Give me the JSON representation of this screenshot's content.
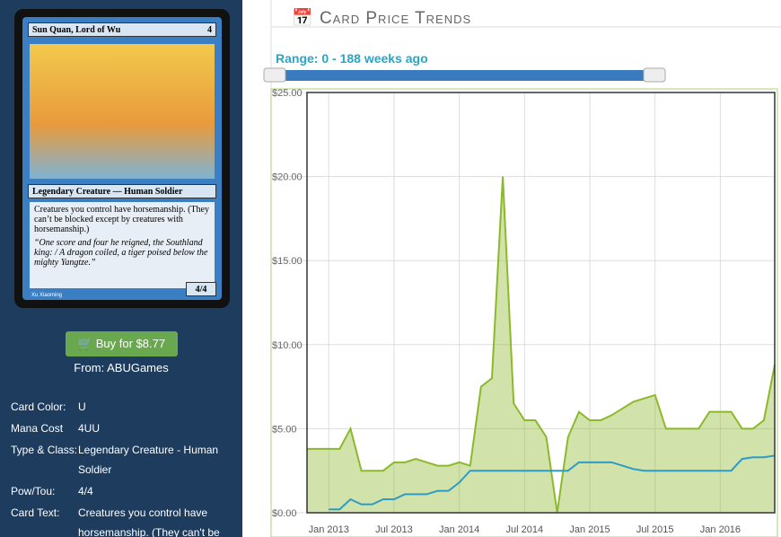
{
  "card": {
    "name": "Sun Quan, Lord of Wu",
    "mana": "4",
    "type_line": "Legendary Creature — Human Soldier",
    "rules": "Creatures you control have horsemanship. (They can’t be blocked except by creatures with horsemanship.)",
    "flavor": "“One score and four he reigned, the Southland king: / A dragon coiled, a tiger poised below the mighty Yangtze.”",
    "artist": "Xu Xiaoming",
    "pt": "4/4"
  },
  "buy": {
    "button": "Buy for $8.77",
    "source": "From: ABUGames"
  },
  "details": [
    [
      "Card Color:",
      "U"
    ],
    [
      "Mana Cost",
      "4UU"
    ],
    [
      "Type & Class:",
      "Legendary Creature - Human Soldier"
    ],
    [
      "Pow/Tou:",
      "4/4"
    ],
    [
      "Card Text:",
      "Creatures you control have horsemanship. (They can't be"
    ]
  ],
  "header": {
    "title": "Card Price Trends",
    "range": "Range: 0 - 188 weeks ago"
  },
  "chart_data": {
    "type": "line",
    "area": true,
    "x": [
      "2012-11",
      "2012-12",
      "2013-01",
      "2013-02",
      "2013-03",
      "2013-04",
      "2013-05",
      "2013-06",
      "2013-07",
      "2013-08",
      "2013-09",
      "2013-10",
      "2013-11",
      "2013-12",
      "2014-01",
      "2014-02",
      "2014-03",
      "2014-04",
      "2014-05",
      "2014-06",
      "2014-07",
      "2014-08",
      "2014-09",
      "2014-10",
      "2014-11",
      "2014-12",
      "2015-01",
      "2015-02",
      "2015-03",
      "2015-04",
      "2015-05",
      "2015-06",
      "2015-07",
      "2015-08",
      "2015-09",
      "2015-10",
      "2015-11",
      "2015-12",
      "2016-01",
      "2016-02",
      "2016-03",
      "2016-04",
      "2016-05",
      "2016-06"
    ],
    "series": [
      {
        "color": "#8cb92a",
        "values": [
          3.8,
          3.8,
          3.8,
          3.8,
          5.0,
          2.5,
          2.5,
          2.5,
          3.0,
          3.0,
          3.2,
          3.0,
          2.8,
          2.8,
          3.0,
          2.8,
          7.5,
          8.0,
          20.0,
          6.5,
          5.5,
          5.5,
          4.5,
          0.0,
          4.5,
          6.0,
          5.5,
          5.5,
          5.8,
          6.2,
          6.6,
          6.8,
          7.0,
          5.0,
          5.0,
          5.0,
          5.0,
          6.0,
          6.0,
          6.0,
          5.0,
          5.0,
          5.5,
          8.8
        ]
      },
      {
        "color": "#2e9bc4",
        "values": [
          null,
          null,
          0.2,
          0.2,
          0.8,
          0.5,
          0.5,
          0.8,
          0.8,
          1.1,
          1.1,
          1.1,
          1.3,
          1.3,
          1.8,
          2.5,
          2.5,
          2.5,
          2.5,
          2.5,
          2.5,
          2.5,
          2.5,
          2.5,
          2.5,
          3.0,
          3.0,
          3.0,
          3.0,
          2.8,
          2.6,
          2.5,
          2.5,
          2.5,
          2.5,
          2.5,
          2.5,
          2.5,
          2.5,
          2.5,
          3.2,
          3.3,
          3.3,
          3.4
        ]
      }
    ],
    "xlim": [
      "2012-11",
      "2016-06"
    ],
    "xticks": [
      {
        "value": "2013-01",
        "label": "Jan 2013"
      },
      {
        "value": "2013-07",
        "label": "Jul 2013"
      },
      {
        "value": "2014-01",
        "label": "Jan 2014"
      },
      {
        "value": "2014-07",
        "label": "Jul 2014"
      },
      {
        "value": "2015-01",
        "label": "Jan 2015"
      },
      {
        "value": "2015-07",
        "label": "Jul 2015"
      },
      {
        "value": "2016-01",
        "label": "Jan 2016"
      }
    ],
    "ylim": [
      0,
      25
    ],
    "yticks": [
      {
        "value": 0,
        "label": "$0.00"
      },
      {
        "value": 5,
        "label": "$5.00"
      },
      {
        "value": 10,
        "label": "$10.00"
      },
      {
        "value": 15,
        "label": "$15.00"
      },
      {
        "value": 20,
        "label": "$20.00"
      },
      {
        "value": 25,
        "label": "$25.00"
      }
    ],
    "grid": true
  }
}
